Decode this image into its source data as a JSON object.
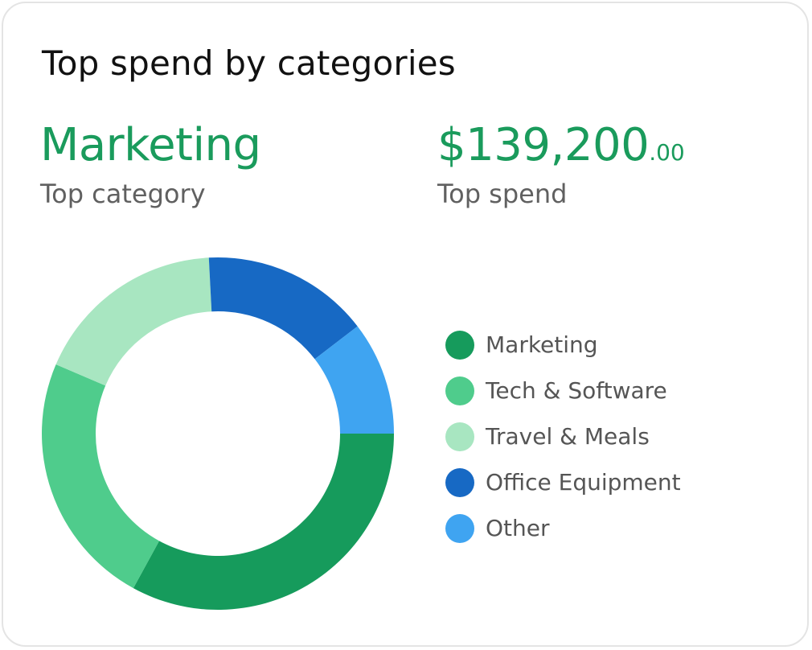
{
  "card": {
    "title": "Top spend by categories",
    "top_category": {
      "value": "Marketing",
      "label": "Top category"
    },
    "top_spend": {
      "amount": "$139,200",
      "cents": ".00",
      "label": "Top spend"
    }
  },
  "chart_data": {
    "type": "pie",
    "variant": "donut",
    "categories": [
      "Marketing",
      "Tech & Software",
      "Travel & Meals",
      "Office Equipment",
      "Other"
    ],
    "values": [
      139200,
      99000,
      75000,
      65000,
      44000
    ],
    "colors": [
      "#169b5c",
      "#4fcc8c",
      "#a8e6c1",
      "#1769c4",
      "#3fa4f1"
    ],
    "legend_position": "right"
  }
}
